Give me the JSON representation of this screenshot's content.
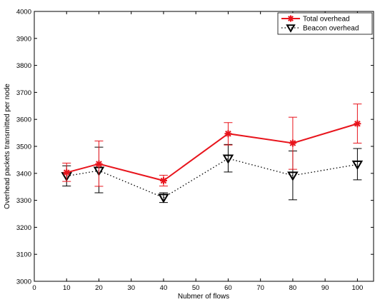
{
  "chart_data": {
    "type": "line",
    "title": "",
    "xlabel": "Nubmer of flows",
    "ylabel": "Overhead packets transmitted per node",
    "xlim": [
      0,
      105
    ],
    "ylim": [
      3000,
      4000
    ],
    "xticks": [
      0,
      10,
      20,
      30,
      40,
      50,
      60,
      70,
      80,
      90,
      100
    ],
    "yticks": [
      3000,
      3100,
      3200,
      3300,
      3400,
      3500,
      3600,
      3700,
      3800,
      3900,
      4000
    ],
    "grid": false,
    "legend_position": "top-right",
    "x": [
      10,
      20,
      40,
      60,
      80,
      100
    ],
    "series": [
      {
        "name": "Total overhead",
        "color": "#e8141c",
        "line_style": "solid",
        "marker": "asterisk",
        "values": [
          3403,
          3435,
          3373,
          3547,
          3512,
          3584
        ],
        "error_low": [
          3370,
          3352,
          3353,
          3505,
          3415,
          3512
        ],
        "error_high": [
          3438,
          3520,
          3393,
          3588,
          3608,
          3657
        ]
      },
      {
        "name": "Beacon overhead",
        "color": "#000000",
        "line_style": "dotted",
        "marker": "triangle-down",
        "values": [
          3390,
          3410,
          3310,
          3455,
          3392,
          3433
        ],
        "error_low": [
          3353,
          3328,
          3292,
          3405,
          3302,
          3376
        ],
        "error_high": [
          3428,
          3497,
          3328,
          3507,
          3483,
          3492
        ]
      }
    ]
  }
}
